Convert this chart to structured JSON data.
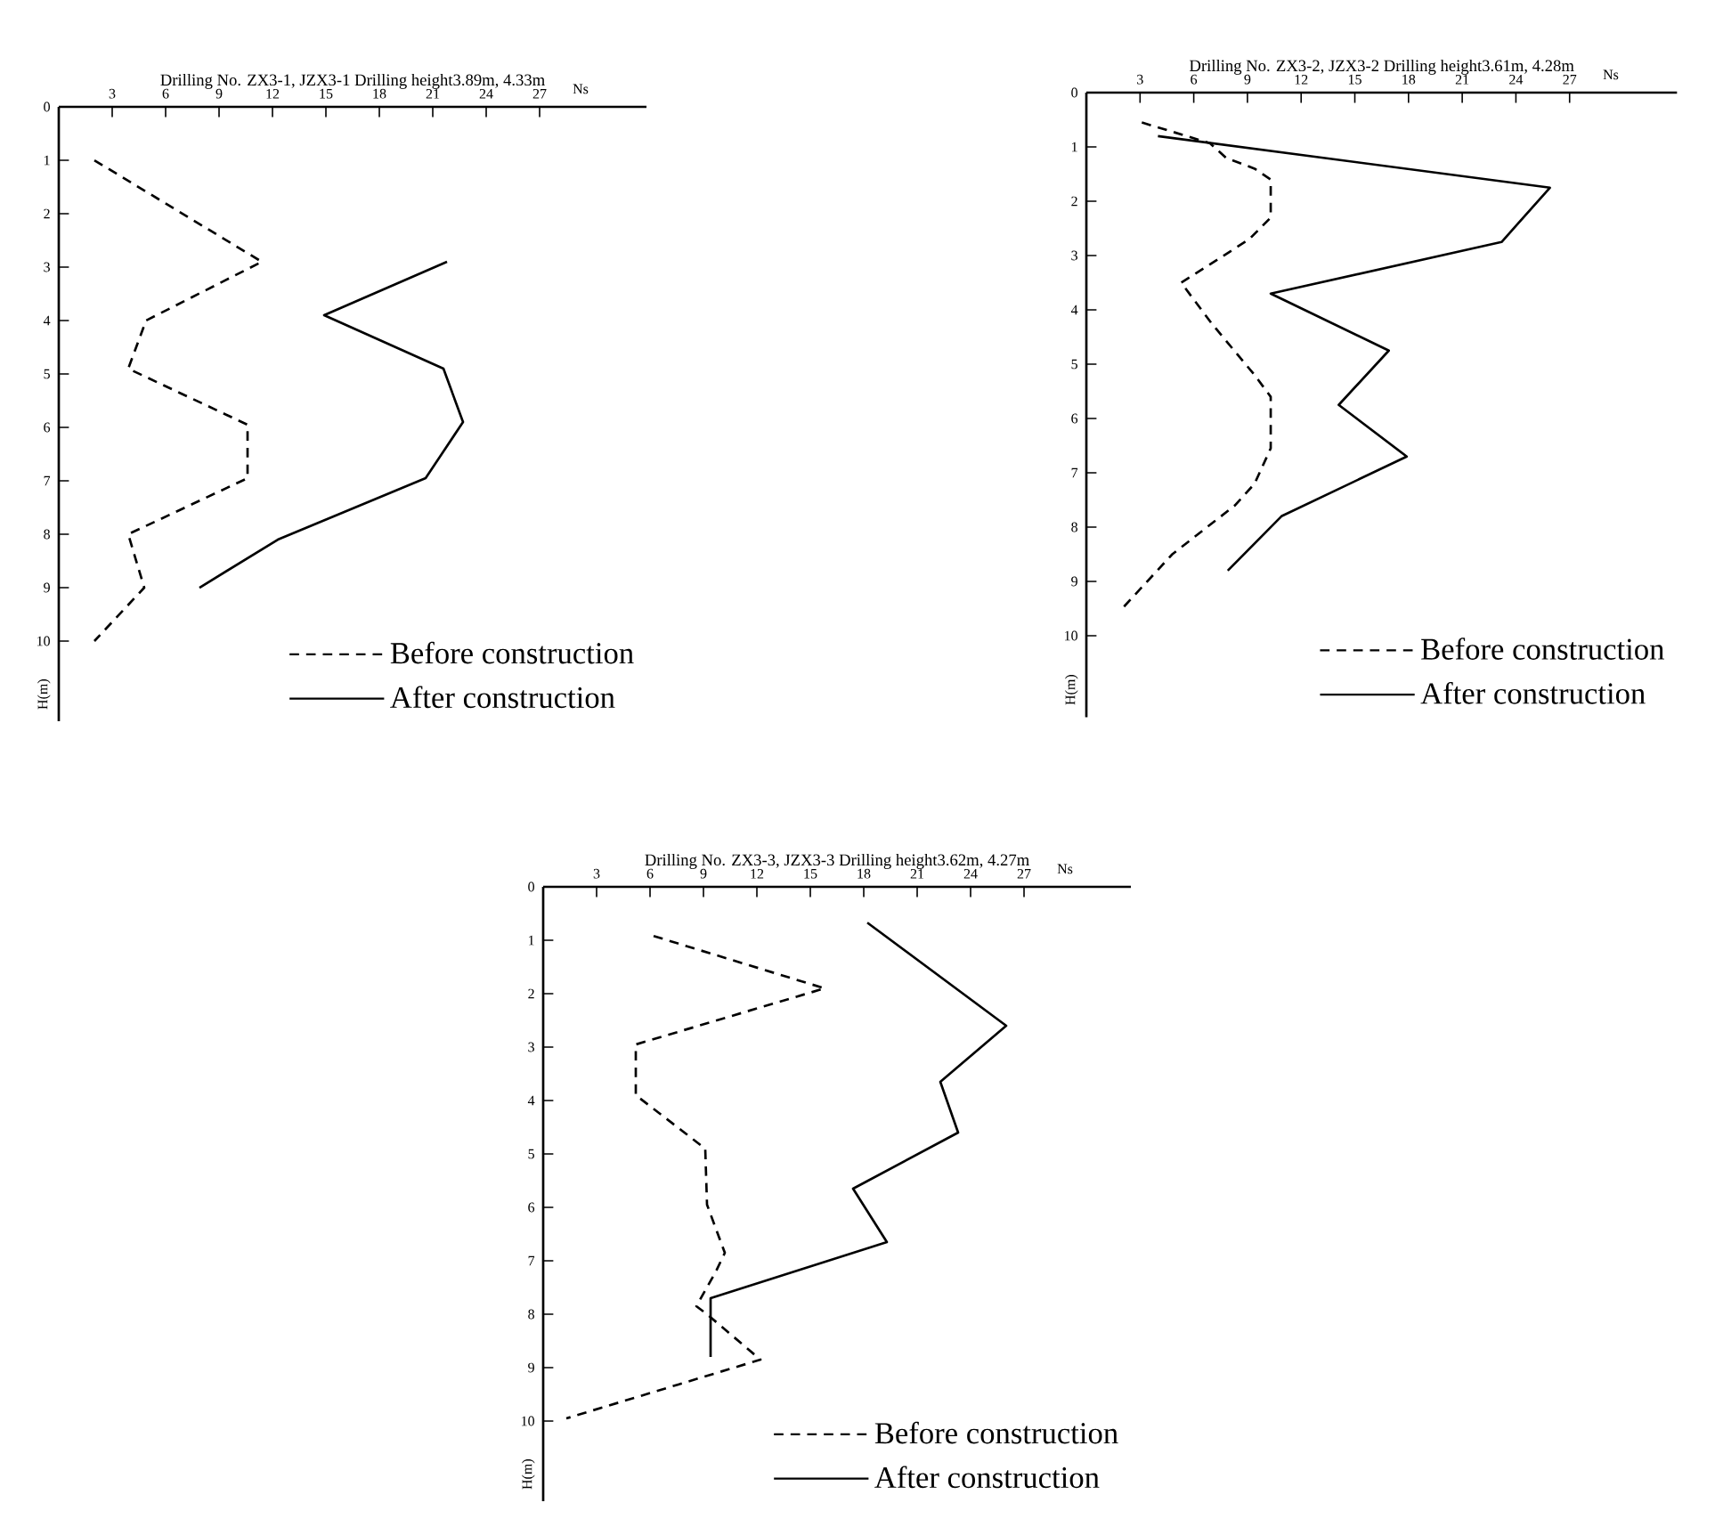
{
  "chart_data": [
    {
      "type": "line",
      "title": "Drilling No. ZX3-1, JZX3-1  Drilling height3.89m, 4.33m",
      "xlabel": "Ns",
      "ylabel": "H(m)",
      "xlim": [
        0,
        33
      ],
      "ylim": [
        11.5,
        0
      ],
      "xticks": [
        3,
        6,
        9,
        12,
        15,
        18,
        21,
        24,
        27
      ],
      "yticks": [
        0,
        1,
        2,
        3,
        4,
        5,
        6,
        7,
        8,
        9,
        10
      ],
      "legend": "bottom right",
      "series": [
        {
          "name": "Before construction",
          "color": "#000000",
          "line_style": "dashed",
          "x": [
            2.0,
            11.4,
            4.9,
            3.9,
            10.6,
            10.6,
            3.9,
            4.8,
            2.0
          ],
          "values": [
            1.0,
            2.9,
            4.0,
            4.9,
            5.95,
            6.95,
            8.0,
            9.0,
            10.0
          ]
        },
        {
          "name": "After construction",
          "color": "#000000",
          "line_style": "solid",
          "x": [
            21.8,
            14.9,
            21.6,
            22.7,
            20.6,
            12.3,
            7.9
          ],
          "values": [
            2.9,
            3.9,
            4.9,
            5.9,
            6.95,
            8.1,
            9.0
          ]
        }
      ]
    },
    {
      "type": "line",
      "title": "Drilling No. ZX3-2, JZX3-2  Drilling height3.61m, 4.28m",
      "xlabel": "Ns",
      "ylabel": "H(m)",
      "xlim": [
        0,
        33
      ],
      "ylim": [
        11.5,
        0
      ],
      "xticks": [
        3,
        6,
        9,
        12,
        15,
        18,
        21,
        24,
        27
      ],
      "yticks": [
        0,
        1,
        2,
        3,
        4,
        5,
        6,
        7,
        8,
        9,
        10
      ],
      "legend": "bottom right",
      "series": [
        {
          "name": "Before construction",
          "color": "#000000",
          "line_style": "dashed",
          "x": [
            3.1,
            6.9,
            7.8,
            9.4,
            10.3,
            10.3,
            9.1,
            5.3,
            7.0,
            9.4,
            10.3,
            10.3,
            9.4,
            8.3,
            4.8,
            2.0
          ],
          "values": [
            0.55,
            0.93,
            1.2,
            1.4,
            1.6,
            2.3,
            2.7,
            3.5,
            4.25,
            5.2,
            5.6,
            6.55,
            7.2,
            7.6,
            8.5,
            9.5
          ]
        },
        {
          "name": "After construction",
          "color": "#000000",
          "line_style": "solid",
          "x": [
            4.0,
            25.9,
            23.2,
            10.3,
            16.9,
            14.1,
            17.9,
            10.9,
            7.9
          ],
          "values": [
            0.8,
            1.75,
            2.75,
            3.7,
            4.75,
            5.75,
            6.7,
            7.8,
            8.8
          ]
        }
      ]
    },
    {
      "type": "line",
      "title": "Drilling No. ZX3-3, JZX3-3  Drilling height3.62m, 4.27m",
      "xlabel": "Ns",
      "ylabel": "H(m)",
      "xlim": [
        0,
        33
      ],
      "ylim": [
        11.5,
        0
      ],
      "xticks": [
        3,
        6,
        9,
        12,
        15,
        18,
        21,
        24,
        27
      ],
      "yticks": [
        0,
        1,
        2,
        3,
        4,
        5,
        6,
        7,
        8,
        9,
        10
      ],
      "legend": "bottom right",
      "series": [
        {
          "name": "Before construction",
          "color": "#000000",
          "line_style": "dashed",
          "x": [
            6.2,
            15.8,
            5.2,
            5.2,
            9.1,
            9.2,
            10.2,
            9.7,
            8.6,
            9.2,
            12.2,
            1.3
          ],
          "values": [
            0.92,
            1.9,
            2.95,
            3.9,
            4.9,
            5.95,
            6.85,
            7.2,
            7.85,
            8.0,
            8.85,
            9.95
          ]
        },
        {
          "name": "After construction",
          "color": "#000000",
          "line_style": "solid",
          "x": [
            18.2,
            26.0,
            22.3,
            23.3,
            17.4,
            19.3,
            9.4,
            9.4
          ],
          "values": [
            0.67,
            2.6,
            3.65,
            4.6,
            5.65,
            6.65,
            7.7,
            8.8
          ]
        }
      ]
    }
  ]
}
